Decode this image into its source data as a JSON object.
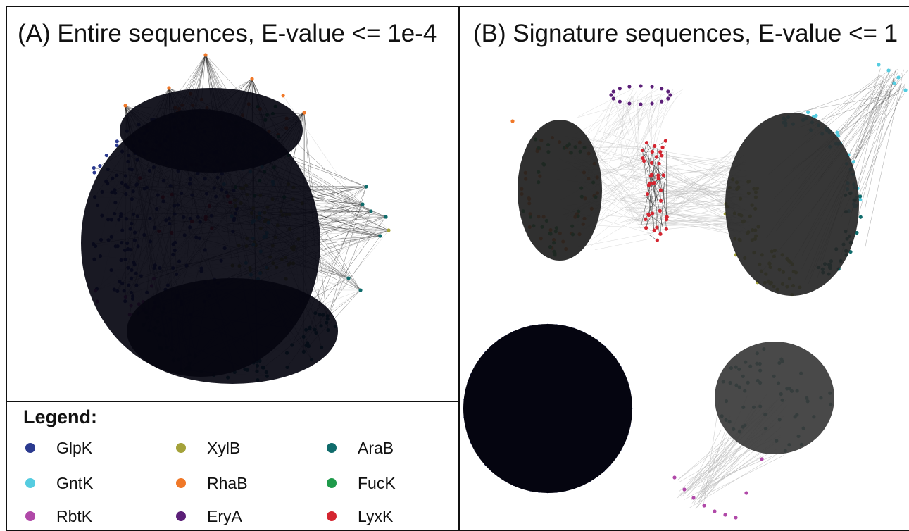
{
  "panel_a": {
    "title": "(A) Entire sequences, E-value <= 1e-4"
  },
  "panel_b": {
    "title": "(B) Signature sequences, E-value <= 1"
  },
  "legend": {
    "title": "Legend:",
    "items": [
      {
        "key": "glpk",
        "label": "GlpK",
        "color": "#2b3a8f"
      },
      {
        "key": "xylb",
        "label": "XylB",
        "color": "#a4a23a"
      },
      {
        "key": "arab",
        "label": "AraB",
        "color": "#0f6b6b"
      },
      {
        "key": "gntk",
        "label": "GntK",
        "color": "#55cce0"
      },
      {
        "key": "rhab",
        "label": "RhaB",
        "color": "#f07828"
      },
      {
        "key": "fuck",
        "label": "FucK",
        "color": "#1e9a4a"
      },
      {
        "key": "rbtk",
        "label": "RbtK",
        "color": "#b048a8"
      },
      {
        "key": "erya",
        "label": "EryA",
        "color": "#5b1f78"
      },
      {
        "key": "lyxk",
        "label": "LyxK",
        "color": "#d42530"
      }
    ]
  },
  "colors": {
    "edge_dark": "#222222",
    "edge_light": "#b9b9b9",
    "node_fill_dark": "#050510"
  }
}
